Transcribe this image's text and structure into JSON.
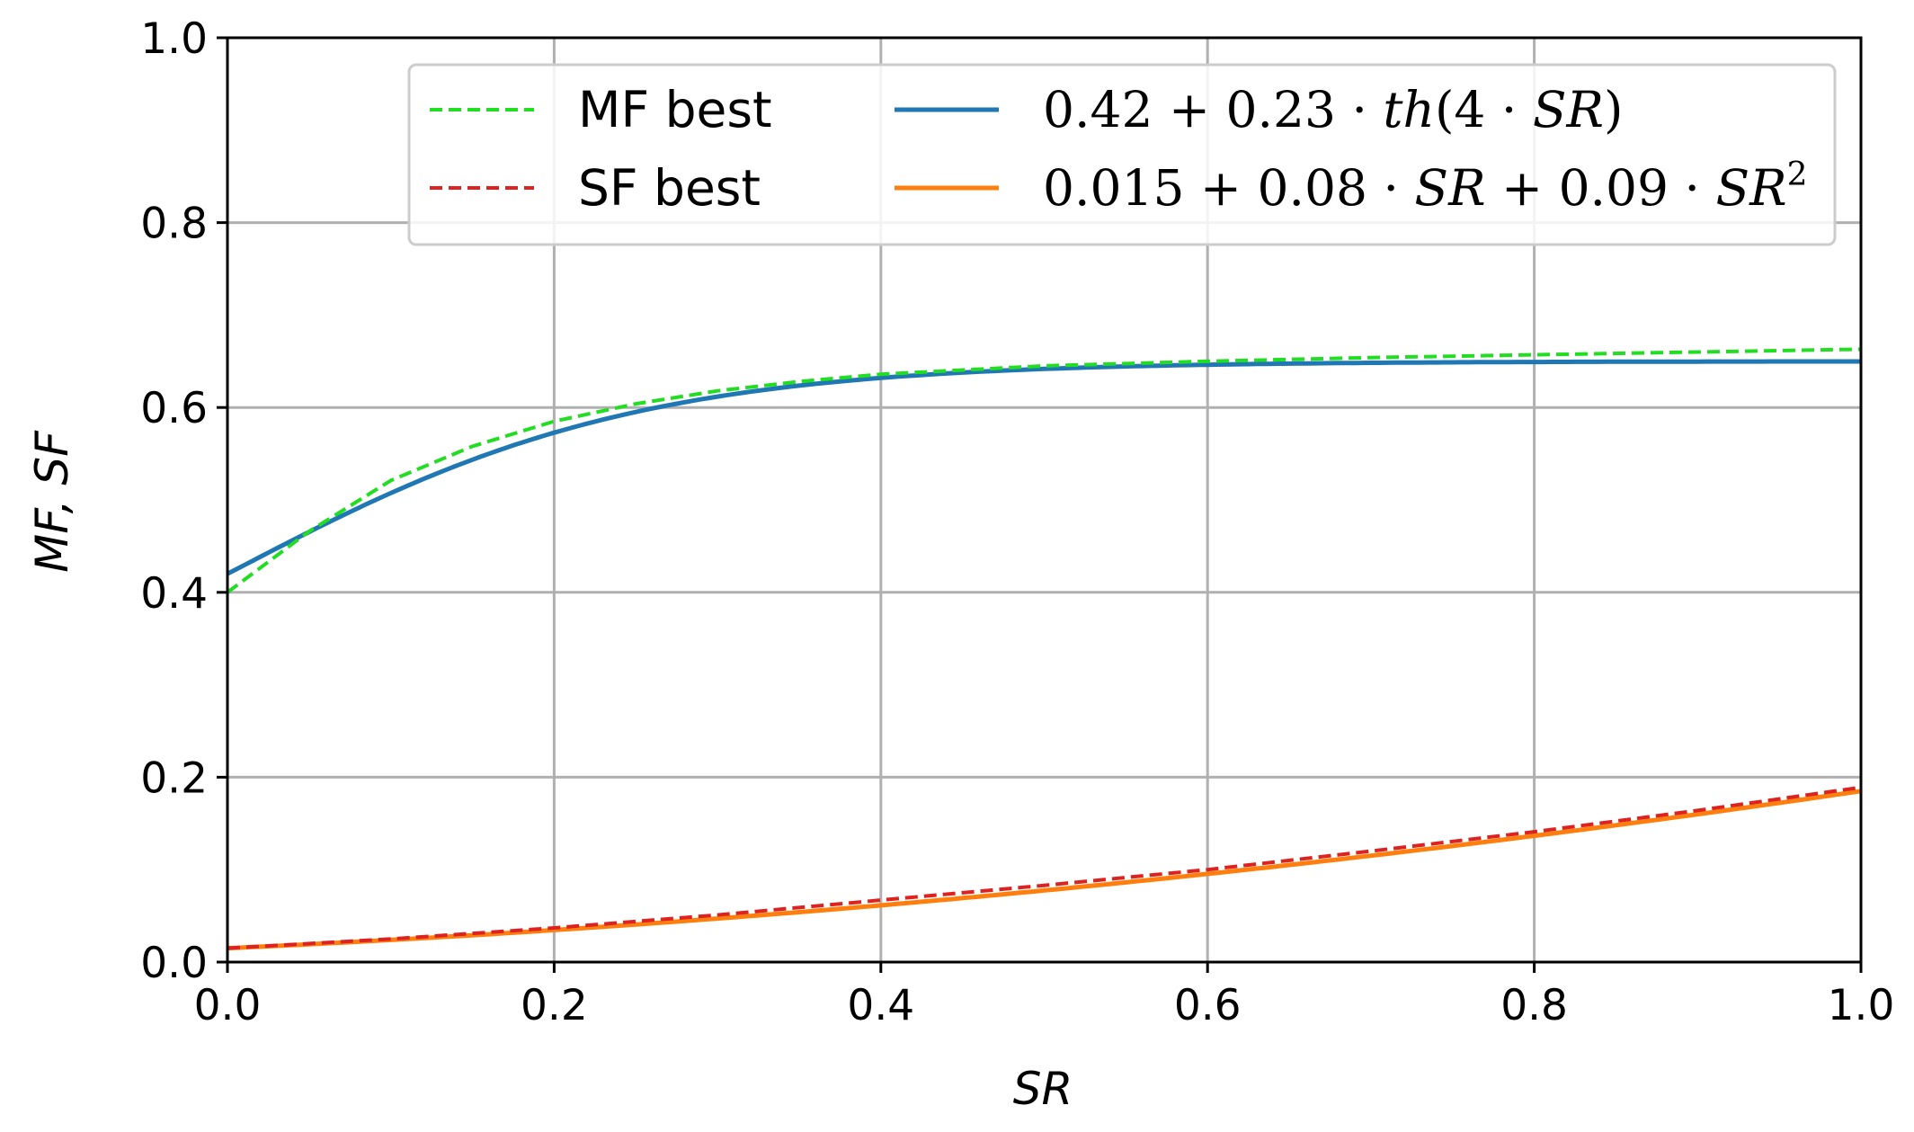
{
  "chart_data": {
    "type": "line",
    "xlabel": "SR",
    "ylabel": "MF, SF",
    "xlim": [
      0.0,
      1.0
    ],
    "ylim": [
      0.0,
      1.0
    ],
    "x_ticks": [
      "0.0",
      "0.2",
      "0.4",
      "0.6",
      "0.8",
      "1.0"
    ],
    "y_ticks": [
      "0.0",
      "0.2",
      "0.4",
      "0.6",
      "0.8",
      "1.0"
    ],
    "grid": true,
    "legend_position": "top-right",
    "series": [
      {
        "name": "MF best",
        "style": "dashed",
        "color": "#22dd22",
        "x": [
          0.0,
          0.05,
          0.1,
          0.15,
          0.2,
          0.25,
          0.3,
          0.35,
          0.4,
          0.5,
          0.6,
          0.7,
          0.8,
          0.9,
          1.0
        ],
        "y": [
          0.4,
          0.466,
          0.521,
          0.558,
          0.585,
          0.604,
          0.618,
          0.628,
          0.636,
          0.645,
          0.65,
          0.654,
          0.657,
          0.66,
          0.663
        ]
      },
      {
        "name": "SF best",
        "style": "dashed",
        "color": "#dd2222",
        "x": [
          0.0,
          0.1,
          0.2,
          0.3,
          0.4,
          0.5,
          0.6,
          0.7,
          0.8,
          0.9,
          1.0
        ],
        "y": [
          0.015,
          0.025,
          0.037,
          0.051,
          0.067,
          0.083,
          0.1,
          0.12,
          0.141,
          0.164,
          0.189
        ]
      },
      {
        "name": "0.42 + 0.23 · th(4 · SR)",
        "style": "solid",
        "color": "#1f77b4",
        "formula": "0.42 + 0.23*tanh(4*SR)"
      },
      {
        "name": "0.015 + 0.08 · SR + 0.09 · SR²",
        "style": "solid",
        "color": "#ff7f0e",
        "formula": "0.015 + 0.08*SR + 0.09*SR^2"
      }
    ]
  },
  "legend": {
    "mf_best": "MF best",
    "sf_best": "SF best",
    "fit1_parts": [
      "0.42 + 0.23 · ",
      "th",
      "(4 · ",
      "SR",
      ")"
    ],
    "fit2_parts": [
      "0.015 + 0.08 · ",
      "SR",
      " + 0.09 · ",
      "SR",
      "2"
    ]
  }
}
